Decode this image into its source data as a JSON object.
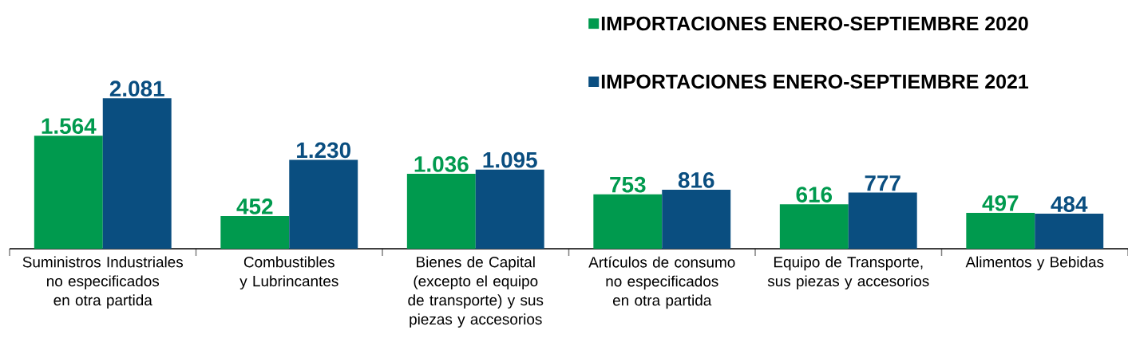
{
  "chart_data": {
    "type": "bar",
    "legend": "top right",
    "categories": [
      "Suministros Industriales no especificados en otra partida",
      "Combustibles y Lubrincantes",
      "Bienes de Capital (excepto el equipo de transporte) y sus piezas y accesorios",
      "Artículos de consumo no especificados en otra partida",
      "Equipo de Transporte, sus piezas y accesorios",
      "Alimentos y Bebidas"
    ],
    "series": [
      {
        "name": "IMPORTACIONES ENERO-SEPTIEMBRE 2020",
        "color": "#009a4e",
        "values": [
          1564,
          452,
          1036,
          753,
          616,
          497
        ],
        "value_labels": [
          "1.564",
          "452",
          "1.036",
          "753",
          "616",
          "497"
        ]
      },
      {
        "name": "IMPORTACIONES ENERO-SEPTIEMBRE 2021",
        "color": "#0a4e80",
        "values": [
          2081,
          1230,
          1095,
          816,
          777,
          484
        ],
        "value_labels": [
          "2.081",
          "1.230",
          "1.095",
          "816",
          "777",
          "484"
        ]
      }
    ]
  }
}
